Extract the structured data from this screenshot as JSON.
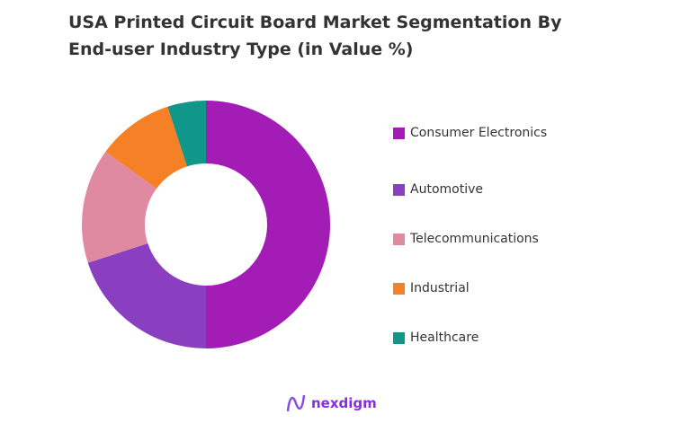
{
  "chart_data": {
    "type": "pie",
    "donut": true,
    "title": "USA Printed Circuit Board Market Segmentation By End-user Industry Type (in Value %)",
    "categories": [
      "Consumer Electronics",
      "Automotive",
      "Telecommunications",
      "Industrial",
      "Healthcare"
    ],
    "values": [
      50,
      20,
      15,
      10,
      5
    ],
    "colors": [
      "#A21CB5",
      "#8A3FC0",
      "#E08AA2",
      "#F58025",
      "#11968A"
    ],
    "legend_position": "right"
  },
  "branding": {
    "logo_text": "nexdigm"
  }
}
